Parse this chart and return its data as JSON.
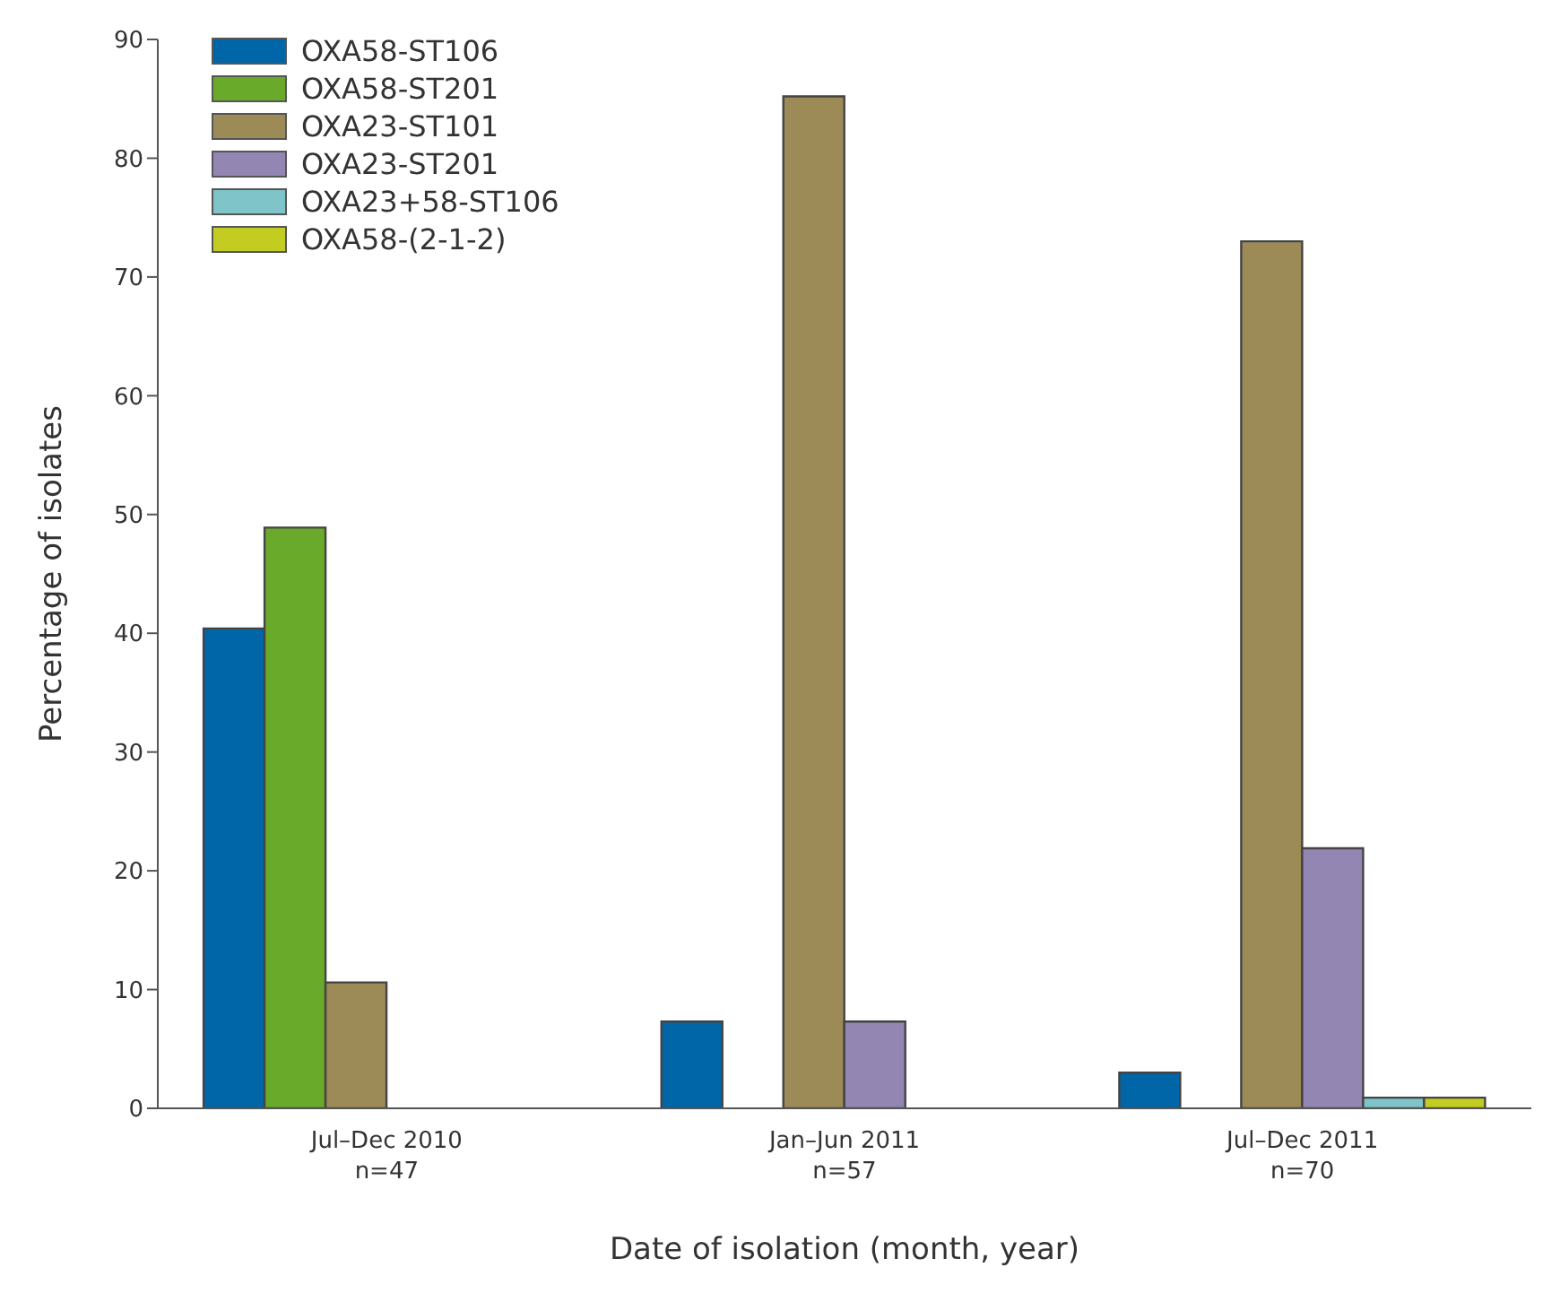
{
  "chart_data": {
    "type": "bar",
    "xlabel": "Date of isolation (month, year)",
    "ylabel": "Percentage of isolates",
    "categories": [
      "Jul–Dec 2010\nn=47",
      "Jan–Jun 2011\nn=57",
      "Jul–Dec 2011\nn=70"
    ],
    "series": [
      {
        "name": "OXA58-ST106",
        "color": "#0066a8",
        "values": [
          40.4,
          7.3,
          3
        ]
      },
      {
        "name": "OXA58-ST201",
        "color": "#6aaa2a",
        "values": [
          48.9,
          0,
          0
        ]
      },
      {
        "name": "OXA23-ST101",
        "color": "#9c8a57",
        "values": [
          10.6,
          85.2,
          73
        ]
      },
      {
        "name": "OXA23-ST201",
        "color": "#9386b3",
        "values": [
          0,
          7.3,
          21.9
        ]
      },
      {
        "name": "OXA23+58-ST106",
        "color": "#7fc4c9",
        "values": [
          0,
          0,
          0.9
        ]
      },
      {
        "name": "OXA58-(2-1-2)",
        "color": "#c3cc20",
        "values": [
          0,
          0,
          0.9
        ]
      }
    ],
    "ylim": [
      0,
      90
    ],
    "yticks": [
      0,
      10,
      20,
      30,
      40,
      50,
      60,
      70,
      80,
      90
    ],
    "grid": false,
    "legend": "top left"
  }
}
